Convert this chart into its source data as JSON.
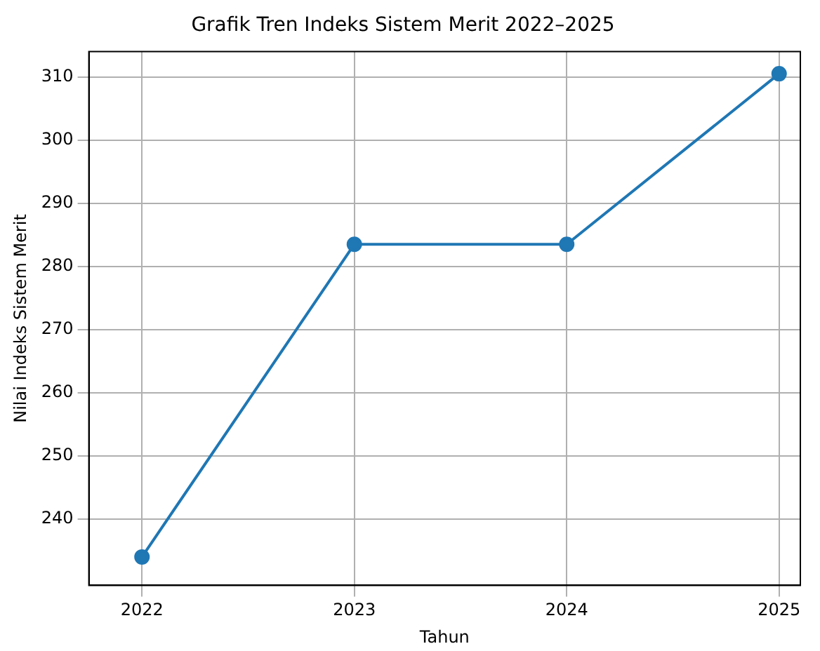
{
  "chart_data": {
    "type": "line",
    "title": "Grafik Tren Indeks Sistem Merit 2022–2025",
    "xlabel": "Tahun",
    "ylabel": "Nilai Indeks Sistem Merit",
    "x": [
      2022,
      2023,
      2024,
      2025
    ],
    "series": [
      {
        "color": "#1f77b4",
        "values": [
          234,
          283.5,
          283.5,
          310.5
        ]
      }
    ],
    "xlim": [
      2021.75,
      2025.1
    ],
    "xticks": [
      2022,
      2023,
      2024,
      2025
    ],
    "ylim": [
      229.5,
      314
    ],
    "yticks": [
      240,
      250,
      260,
      270,
      280,
      290,
      300,
      310
    ],
    "grid": true,
    "marker": "circle",
    "line_style": "solid",
    "legend": false
  }
}
